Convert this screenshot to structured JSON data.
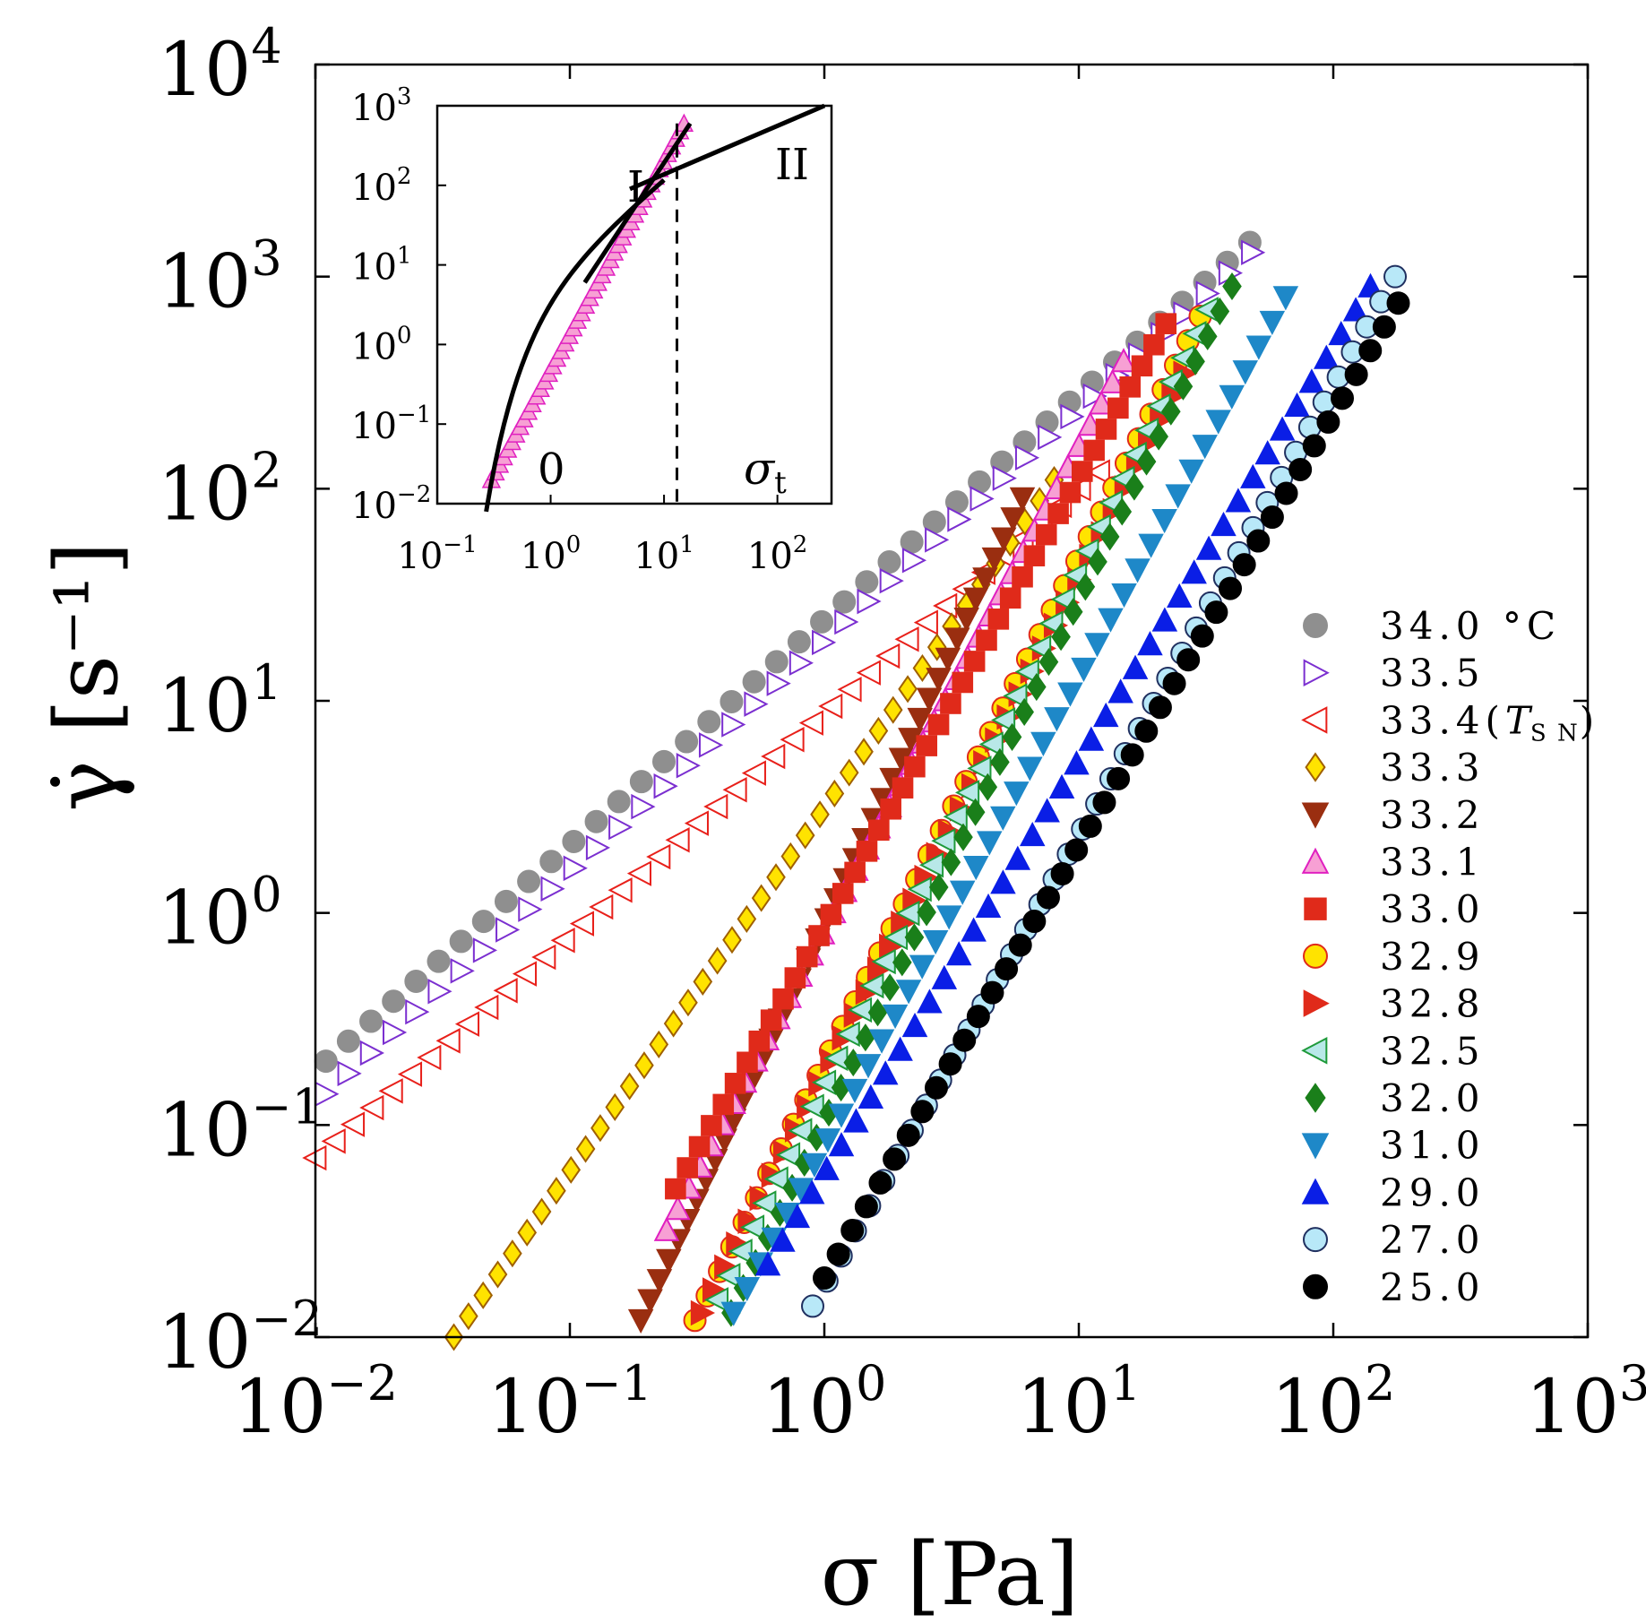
{
  "chart_data": {
    "type": "scatter",
    "xlabel": "σ  [Pa]",
    "ylabel": "γ̇  [s⁻¹]",
    "x_scale": "log",
    "y_scale": "log",
    "xlim": [
      0.01,
      1000
    ],
    "ylim": [
      0.01,
      10000
    ],
    "x_ticks": [
      {
        "v": 0.01,
        "m": "10",
        "e": "−2"
      },
      {
        "v": 0.1,
        "m": "10",
        "e": "−1"
      },
      {
        "v": 1,
        "m": "10",
        "e": "0"
      },
      {
        "v": 10,
        "m": "10",
        "e": "1"
      },
      {
        "v": 100,
        "m": "10",
        "e": "2"
      },
      {
        "v": 1000,
        "m": "10",
        "e": "3"
      }
    ],
    "y_ticks": [
      {
        "v": 0.01,
        "m": "10",
        "e": "−2"
      },
      {
        "v": 0.1,
        "m": "10",
        "e": "−1"
      },
      {
        "v": 1,
        "m": "10",
        "e": "0"
      },
      {
        "v": 10,
        "m": "10",
        "e": "1"
      },
      {
        "v": 100,
        "m": "10",
        "e": "2"
      },
      {
        "v": 1000,
        "m": "10",
        "e": "3"
      },
      {
        "v": 10000,
        "m": "10",
        "e": "4"
      }
    ],
    "legend_position": "right",
    "series": [
      {
        "name": "34.0 °C",
        "marker": "circle",
        "fill": "#8f8f8f",
        "stroke": "#8f8f8f",
        "sigma_range": [
          0.011,
          47
        ],
        "rate_range": [
          0.2,
          1450
        ]
      },
      {
        "name": "33.5",
        "marker": "triangle-right",
        "fill": "#ffffff",
        "stroke": "#7b2fd0",
        "sigma_range": [
          0.011,
          48
        ],
        "rate_range": [
          0.14,
          1300
        ]
      },
      {
        "name": "33.4",
        "name_suffix": "T",
        "name_sub": "S N",
        "marker": "triangle-left",
        "fill": "#ffffff",
        "stroke": "#e8201a",
        "sigma_range": [
          0.01,
          12
        ],
        "rate_range": [
          0.07,
          120
        ]
      },
      {
        "name": "33.3",
        "marker": "diamond",
        "fill": "#ffe300",
        "stroke": "#a06000",
        "sigma_range": [
          0.035,
          8
        ],
        "rate_range": [
          0.01,
          110
        ]
      },
      {
        "name": "33.2",
        "marker": "triangle-down",
        "fill": "#9a2e10",
        "stroke": "#9a2e10",
        "sigma_range": [
          0.19,
          6
        ],
        "rate_range": [
          0.012,
          90
        ]
      },
      {
        "name": "33.1",
        "marker": "triangle-up",
        "fill": "#f7a0d4",
        "stroke": "#e020c0",
        "sigma_range": [
          0.24,
          15
        ],
        "rate_range": [
          0.032,
          400
        ]
      },
      {
        "name": "33.0",
        "marker": "square",
        "fill": "#e02a1a",
        "stroke": "#e02a1a",
        "sigma_range": [
          0.26,
          22
        ],
        "rate_range": [
          0.05,
          600
        ]
      },
      {
        "name": "32.9",
        "marker": "circle",
        "fill": "#ffe300",
        "stroke": "#e02a1a",
        "sigma_range": [
          0.31,
          30
        ],
        "rate_range": [
          0.012,
          650
        ]
      },
      {
        "name": "32.8",
        "marker": "triangle-right",
        "fill": "#e02a1a",
        "stroke": "#e02a1a",
        "sigma_range": [
          0.33,
          26
        ],
        "rate_range": [
          0.013,
          350
        ]
      },
      {
        "name": "32.5",
        "marker": "triangle-left",
        "fill": "#b8e8e8",
        "stroke": "#1e9a3a",
        "sigma_range": [
          0.38,
          32
        ],
        "rate_range": [
          0.015,
          700
        ]
      },
      {
        "name": "32.0",
        "marker": "diamond",
        "fill": "#1a7f1a",
        "stroke": "#1a7f1a",
        "sigma_range": [
          0.43,
          40
        ],
        "rate_range": [
          0.013,
          900
        ]
      },
      {
        "name": "31.0",
        "marker": "triangle-down",
        "fill": "#1e88c8",
        "stroke": "#1e88c8",
        "sigma_range": [
          0.44,
          65
        ],
        "rate_range": [
          0.013,
          800
        ]
      },
      {
        "name": "29.0",
        "marker": "triangle-up",
        "fill": "#0a1ee6",
        "stroke": "#0a1ee6",
        "sigma_range": [
          0.6,
          140
        ],
        "rate_range": [
          0.022,
          900
        ]
      },
      {
        "name": "27.0",
        "marker": "circle",
        "fill": "#b8e8f8",
        "stroke": "#203060",
        "sigma_range": [
          0.9,
          175
        ],
        "rate_range": [
          0.014,
          1000
        ]
      },
      {
        "name": "25.0",
        "marker": "circle",
        "fill": "#000000",
        "stroke": "#000000",
        "sigma_range": [
          1.0,
          180
        ],
        "rate_range": [
          0.019,
          750
        ]
      }
    ],
    "inset": {
      "type": "scatter",
      "x_scale": "log",
      "y_scale": "log",
      "xlim": [
        0.1,
        300
      ],
      "ylim": [
        0.01,
        1000
      ],
      "x_ticks": [
        {
          "v": 0.1,
          "m": "10",
          "e": "−1"
        },
        {
          "v": 1,
          "m": "10",
          "e": "0"
        },
        {
          "v": 10,
          "m": "10",
          "e": "1"
        },
        {
          "v": 100,
          "m": "10",
          "e": "2"
        }
      ],
      "y_ticks": [
        {
          "v": 0.01,
          "m": "10",
          "e": "−2"
        },
        {
          "v": 0.1,
          "m": "10",
          "e": "−1"
        },
        {
          "v": 1,
          "m": "10",
          "e": "0"
        },
        {
          "v": 10,
          "m": "10",
          "e": "1"
        },
        {
          "v": 100,
          "m": "10",
          "e": "2"
        },
        {
          "v": 1000,
          "m": "10",
          "e": "3"
        }
      ],
      "series_name": "33.1",
      "sigma_range": [
        0.3,
        15
      ],
      "rate_range": [
        0.02,
        600
      ],
      "sigma_t": 13,
      "regime_labels": [
        "0",
        "I",
        "II"
      ],
      "sigma_t_label": "σ",
      "sigma_t_sub": "t"
    }
  }
}
